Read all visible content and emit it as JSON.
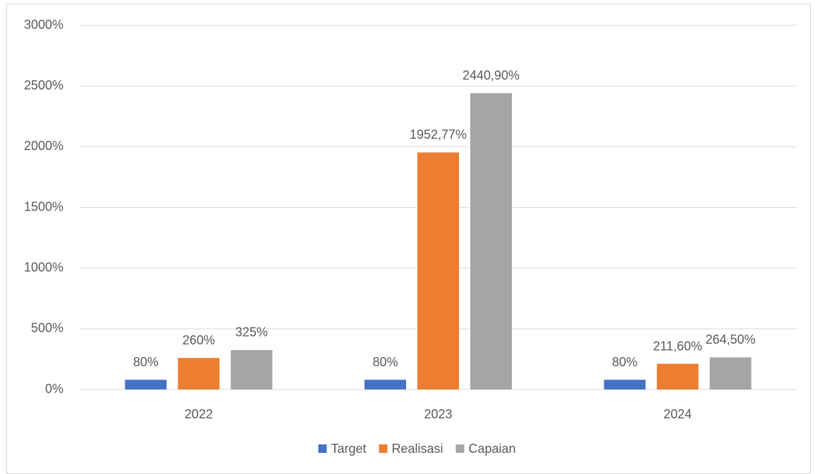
{
  "chart_data": {
    "type": "bar",
    "categories": [
      "2022",
      "2023",
      "2024"
    ],
    "series": [
      {
        "name": "Target",
        "color": "#4472c4",
        "values": [
          80,
          80,
          80
        ],
        "value_labels": [
          "80%",
          "80%",
          "80%"
        ]
      },
      {
        "name": "Realisasi",
        "color": "#ed7d31",
        "values": [
          260,
          1952.77,
          211.6
        ],
        "value_labels": [
          "260%",
          "1952,77%",
          "211,60%"
        ]
      },
      {
        "name": "Capaian",
        "color": "#a5a5a5",
        "values": [
          325,
          2440.9,
          264.5
        ],
        "value_labels": [
          "325%",
          "2440,90%",
          "264,50%"
        ]
      }
    ],
    "ylim": [
      0,
      3000
    ],
    "yticks": [
      {
        "value": 0,
        "label": "0%"
      },
      {
        "value": 500,
        "label": "500%"
      },
      {
        "value": 1000,
        "label": "1000%"
      },
      {
        "value": 1500,
        "label": "1500%"
      },
      {
        "value": 2000,
        "label": "2000%"
      },
      {
        "value": 2500,
        "label": "2500%"
      },
      {
        "value": 3000,
        "label": "3000%"
      }
    ],
    "grid": true,
    "legend": "bottom"
  }
}
